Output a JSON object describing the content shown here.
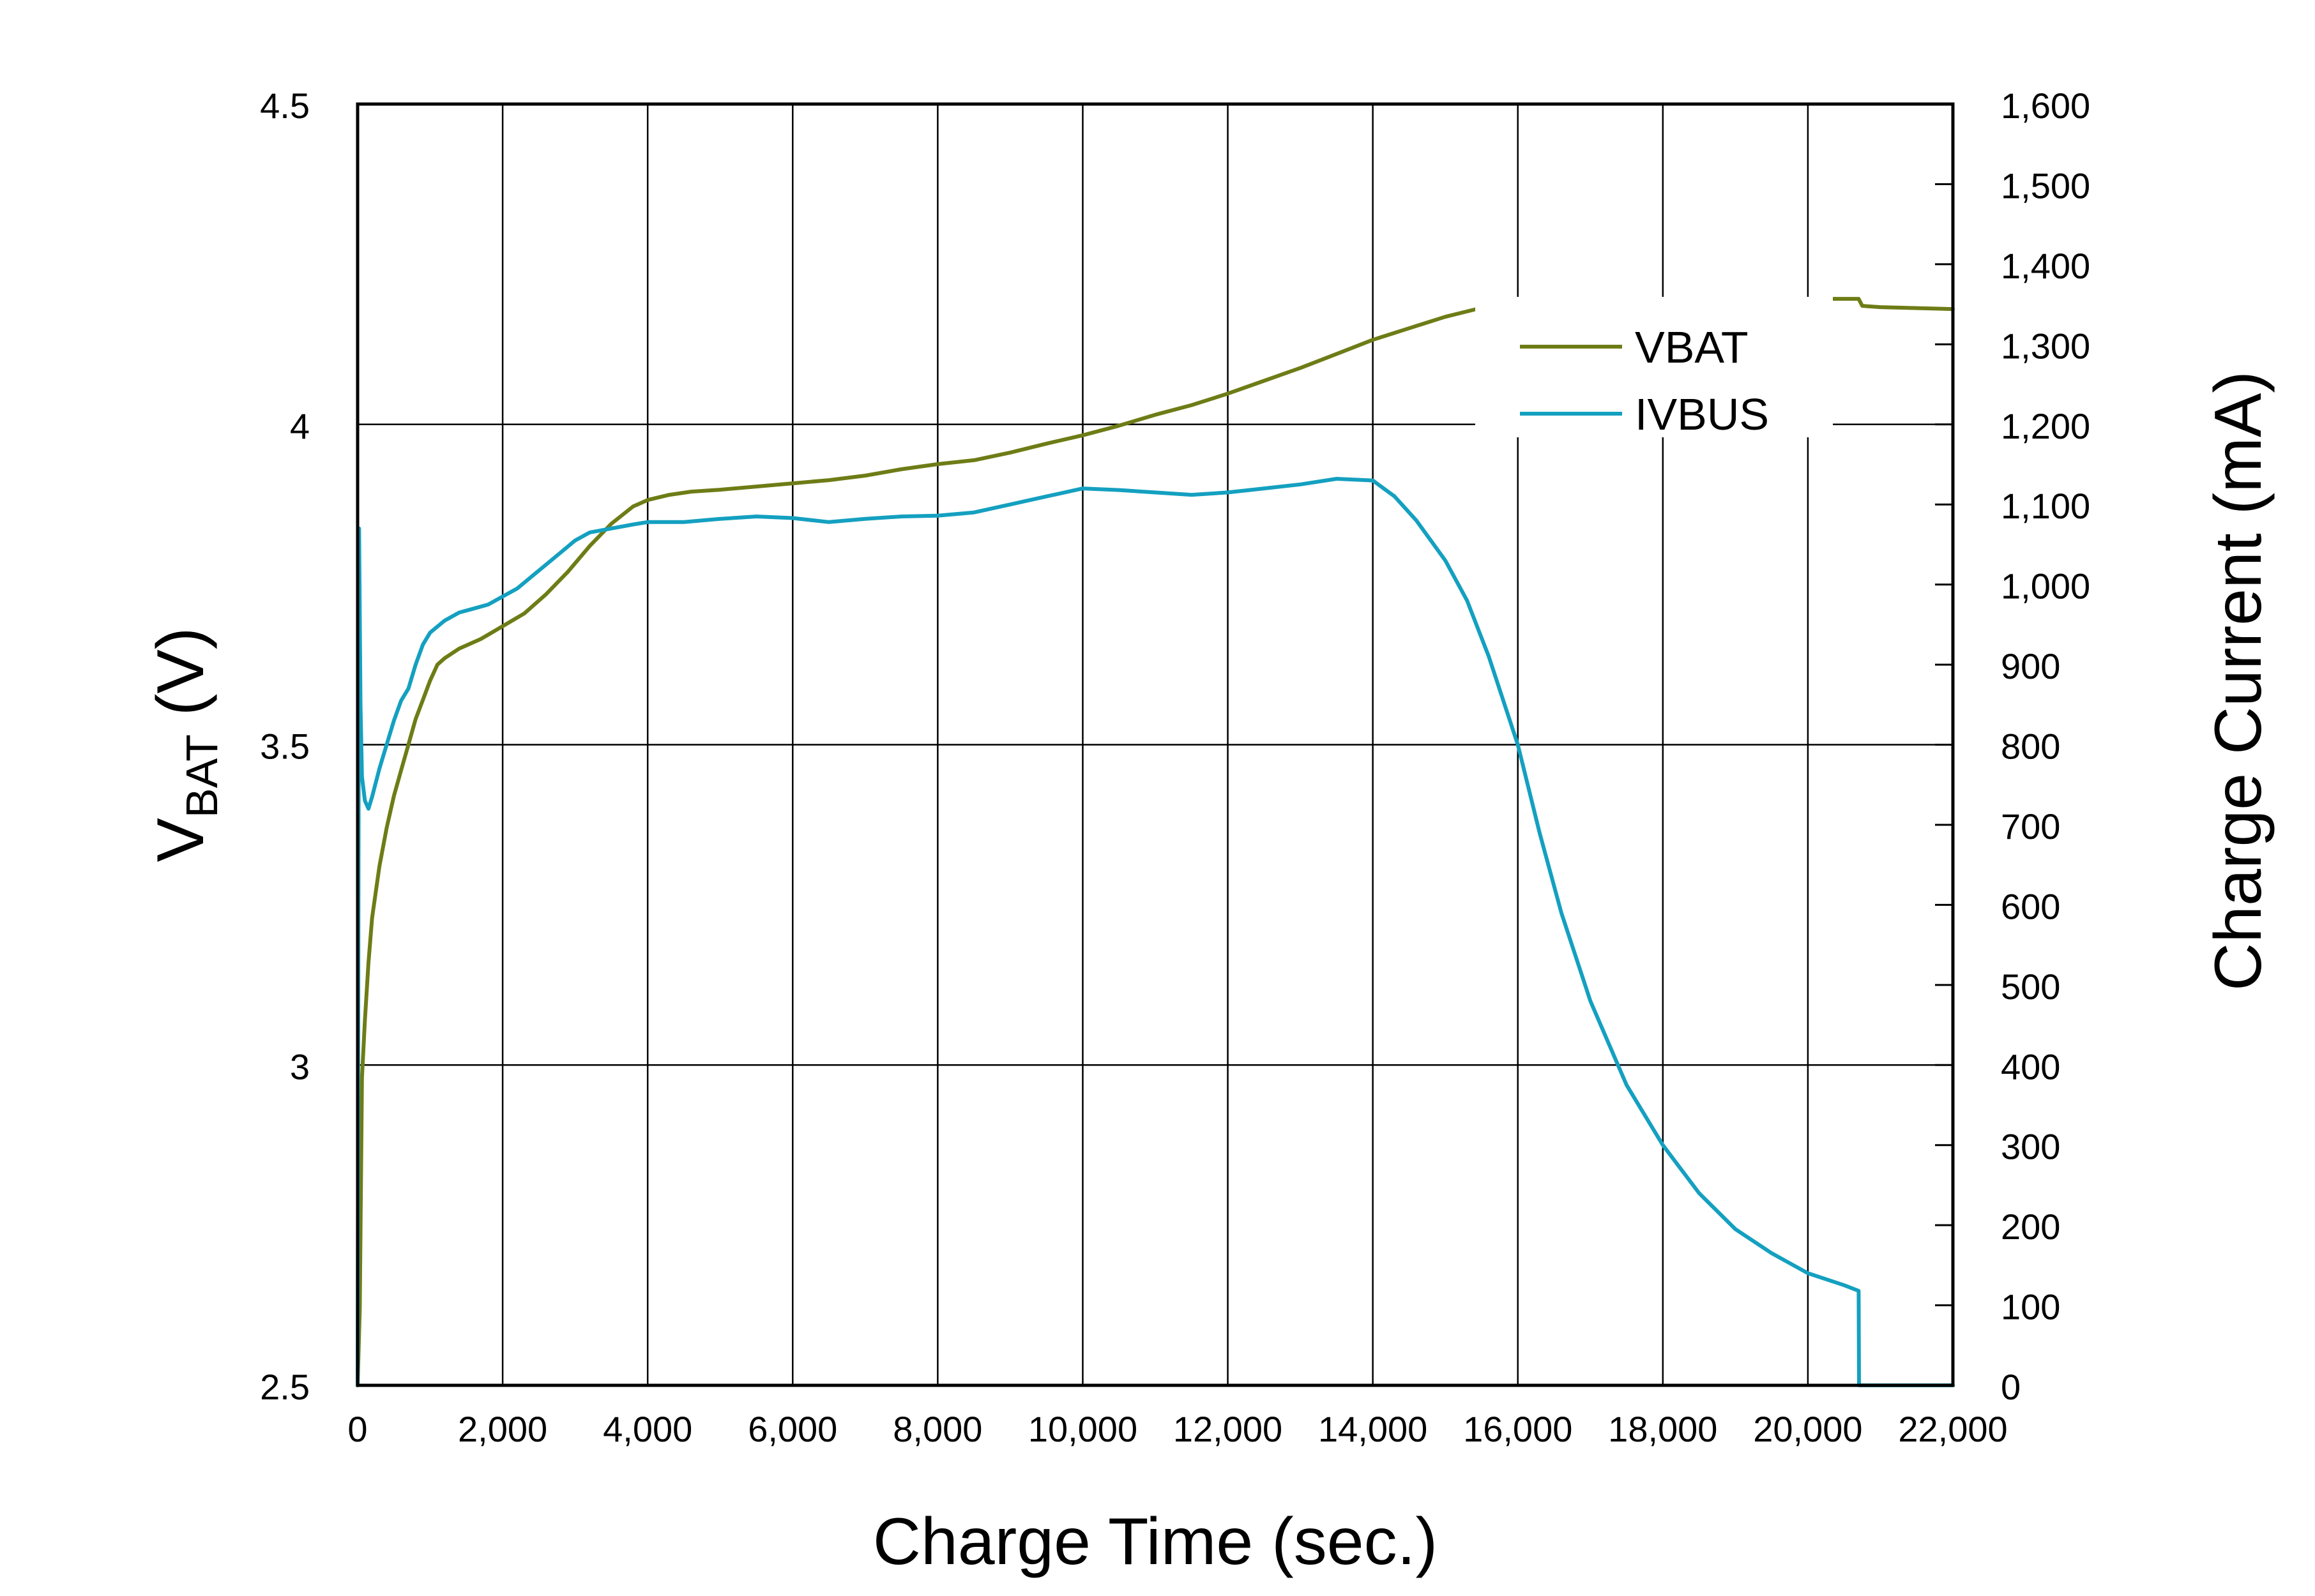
{
  "chart_data": {
    "type": "line",
    "xlabel": "Charge Time (sec.)",
    "ylabel_left_main": "V",
    "ylabel_left_sub": "BAT",
    "ylabel_left_unit": " (V)",
    "ylabel_right": "Charge Current (mA)",
    "xlim": [
      0,
      22000
    ],
    "ylim_left": [
      2.5,
      4.5
    ],
    "ylim_right": [
      0,
      1600
    ],
    "x_ticks": [
      0,
      2000,
      4000,
      6000,
      8000,
      10000,
      12000,
      14000,
      16000,
      18000,
      20000,
      22000
    ],
    "x_tick_labels": [
      "0",
      "2,000",
      "4,000",
      "6,000",
      "8,000",
      "10,000",
      "12,000",
      "14,000",
      "16,000",
      "18,000",
      "20,000",
      "22,000"
    ],
    "y_left_ticks": [
      2.5,
      3,
      3.5,
      4,
      4.5
    ],
    "y_left_tick_labels": [
      "2.5",
      "3",
      "3.5",
      "4",
      "4.5"
    ],
    "y_right_ticks": [
      0,
      100,
      200,
      300,
      400,
      500,
      600,
      700,
      800,
      900,
      1000,
      1100,
      1200,
      1300,
      1400,
      1500,
      1600
    ],
    "y_right_tick_labels": [
      "0",
      "100",
      "200",
      "300",
      "400",
      "500",
      "600",
      "700",
      "800",
      "900",
      "1,000",
      "1,100",
      "1,200",
      "1,300",
      "1,400",
      "1,500",
      "1,600"
    ],
    "grid": true,
    "legend_position": "top-right",
    "series": [
      {
        "name": "VBAT",
        "axis": "left",
        "color": "#6e7c16",
        "x": [
          0,
          30,
          60,
          100,
          150,
          200,
          300,
          400,
          500,
          600,
          700,
          800,
          900,
          1000,
          1100,
          1200,
          1400,
          1700,
          2000,
          2300,
          2600,
          2900,
          3200,
          3500,
          3800,
          4000,
          4300,
          4600,
          5000,
          5500,
          6000,
          6500,
          7000,
          7500,
          8000,
          8500,
          9000,
          9500,
          10000,
          10500,
          11000,
          11500,
          12000,
          12500,
          13000,
          13500,
          14000,
          14500,
          15000,
          15500,
          16000,
          16500,
          17000,
          18000,
          19000,
          20000,
          20700,
          20750,
          21000,
          22000
        ],
        "values": [
          2.5,
          2.62,
          2.98,
          3.07,
          3.16,
          3.23,
          3.31,
          3.37,
          3.42,
          3.46,
          3.5,
          3.54,
          3.57,
          3.6,
          3.625,
          3.635,
          3.65,
          3.665,
          3.685,
          3.705,
          3.735,
          3.77,
          3.81,
          3.845,
          3.872,
          3.882,
          3.89,
          3.895,
          3.898,
          3.903,
          3.908,
          3.913,
          3.92,
          3.93,
          3.938,
          3.944,
          3.956,
          3.97,
          3.983,
          3.998,
          4.015,
          4.03,
          4.048,
          4.068,
          4.088,
          4.11,
          4.132,
          4.15,
          4.168,
          4.182,
          4.188,
          4.191,
          4.192,
          4.194,
          4.195,
          4.196,
          4.196,
          4.185,
          4.183,
          4.18
        ]
      },
      {
        "name": "IVBUS",
        "axis": "right",
        "color": "#14a0c0",
        "x": [
          0,
          20,
          40,
          60,
          100,
          150,
          200,
          300,
          400,
          500,
          600,
          700,
          800,
          900,
          1000,
          1200,
          1400,
          1600,
          1800,
          2000,
          2200,
          2400,
          2600,
          2800,
          3000,
          3200,
          3500,
          3800,
          4000,
          4500,
          5000,
          5500,
          6000,
          6500,
          7000,
          7500,
          8000,
          8500,
          9000,
          9500,
          10000,
          10500,
          11000,
          11500,
          12000,
          12500,
          13000,
          13500,
          14000,
          14300,
          14600,
          15000,
          15300,
          15600,
          16000,
          16300,
          16600,
          17000,
          17500,
          18000,
          18500,
          19000,
          19500,
          20000,
          20500,
          20700,
          20705,
          21000,
          22000
        ],
        "values": [
          0,
          1070,
          850,
          760,
          730,
          720,
          735,
          770,
          800,
          830,
          855,
          870,
          900,
          925,
          940,
          955,
          965,
          970,
          975,
          985,
          995,
          1010,
          1025,
          1040,
          1055,
          1065,
          1070,
          1075,
          1078,
          1078,
          1082,
          1085,
          1083,
          1078,
          1082,
          1085,
          1086,
          1090,
          1100,
          1110,
          1120,
          1118,
          1115,
          1112,
          1115,
          1120,
          1125,
          1132,
          1130,
          1110,
          1080,
          1030,
          980,
          910,
          800,
          690,
          590,
          480,
          375,
          300,
          240,
          195,
          165,
          140,
          125,
          118,
          0,
          0,
          0
        ]
      }
    ]
  }
}
